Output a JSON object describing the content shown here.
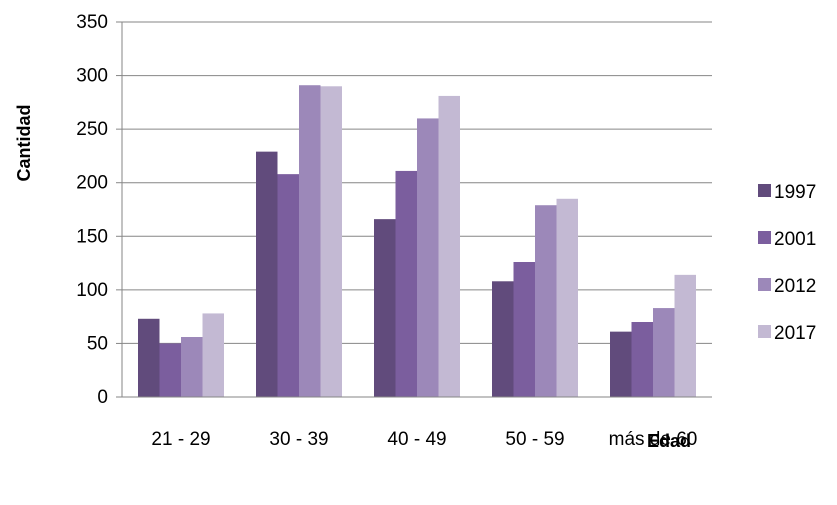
{
  "chart_data": {
    "type": "bar",
    "title": "",
    "xlabel": "Edad",
    "ylabel": "Cantidad",
    "categories": [
      "21 - 29",
      "30 - 39",
      "40 - 49",
      "50 - 59",
      "más de 60"
    ],
    "series": [
      {
        "name": "1997",
        "values": [
          73,
          229,
          166,
          108,
          61
        ],
        "color": "#614B7C"
      },
      {
        "name": "2001",
        "values": [
          50,
          208,
          211,
          126,
          70
        ],
        "color": "#7B5E9E"
      },
      {
        "name": "2012",
        "values": [
          56,
          291,
          260,
          179,
          83
        ],
        "color": "#9C88B9"
      },
      {
        "name": "2017",
        "values": [
          78,
          290,
          281,
          185,
          114
        ],
        "color": "#C3B9D3"
      }
    ],
    "ylim": [
      0,
      350
    ],
    "yticks": [
      0,
      50,
      100,
      150,
      200,
      250,
      300,
      350
    ],
    "grid": true,
    "legend_position": "right"
  }
}
